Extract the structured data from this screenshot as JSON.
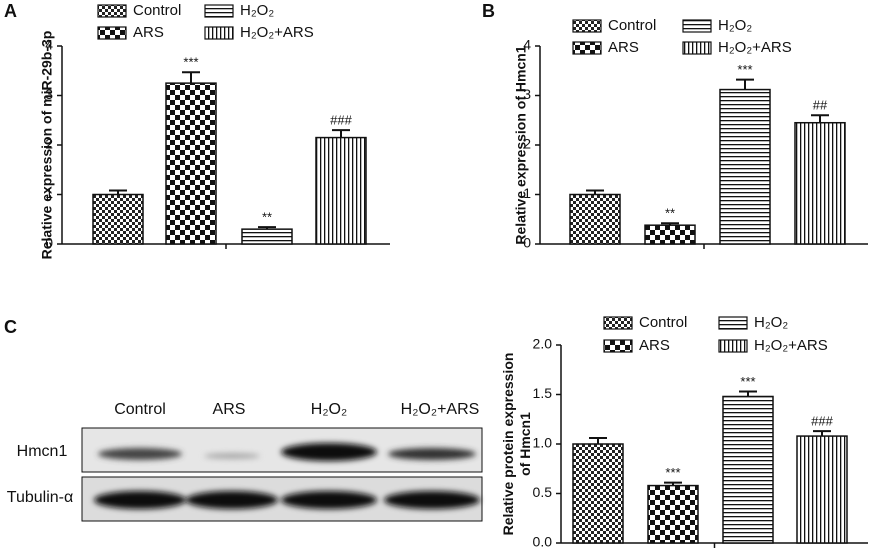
{
  "panels": [
    "A",
    "B",
    "C"
  ],
  "blot": {
    "columns": [
      "Control",
      "ARS",
      "H₂O₂",
      "H₂O₂+ARS"
    ],
    "rows": [
      "Hmcn1",
      "Tubulin-α"
    ]
  },
  "chart_data": [
    {
      "type": "bar",
      "y_label": [
        "Relative expression of miR-29b-3p"
      ],
      "categories": [
        "Control",
        "ARS",
        "H₂O₂",
        "H₂O₂+ARS"
      ],
      "patterns": [
        "checker-small",
        "checker-large",
        "hstripe",
        "vstripe"
      ],
      "values": [
        1.0,
        3.25,
        0.3,
        2.15
      ],
      "errors": [
        0.08,
        0.22,
        0.04,
        0.15
      ],
      "annotations": [
        null,
        "***",
        "**",
        "###"
      ],
      "ylim": [
        0,
        4
      ],
      "yticks": [
        0,
        1,
        2,
        3,
        4
      ]
    },
    {
      "type": "bar",
      "y_label": [
        "Relative expression of Hmcn1"
      ],
      "categories": [
        "Control",
        "ARS",
        "H₂O₂",
        "H₂O₂+ARS"
      ],
      "patterns": [
        "checker-small",
        "checker-large",
        "hstripe",
        "vstripe"
      ],
      "values": [
        1.0,
        0.38,
        3.12,
        2.45
      ],
      "errors": [
        0.08,
        0.04,
        0.2,
        0.15
      ],
      "annotations": [
        null,
        "**",
        "***",
        "##"
      ],
      "ylim": [
        0,
        4
      ],
      "yticks": [
        0,
        1,
        2,
        3,
        4
      ]
    },
    {
      "type": "bar",
      "y_label": [
        "Relative protein expression",
        "of Hmcn1"
      ],
      "categories": [
        "Control",
        "ARS",
        "H₂O₂",
        "H₂O₂+ARS"
      ],
      "patterns": [
        "checker-small",
        "checker-large",
        "hstripe",
        "vstripe"
      ],
      "values": [
        1.0,
        0.58,
        1.48,
        1.08
      ],
      "errors": [
        0.06,
        0.03,
        0.05,
        0.05
      ],
      "annotations": [
        null,
        "***",
        "***",
        "###"
      ],
      "ylim": [
        0,
        2
      ],
      "yticks": [
        {
          "value": 0,
          "label": "0.0"
        },
        {
          "value": 0.5,
          "label": "0.5"
        },
        {
          "value": 1,
          "label": "1.0"
        },
        {
          "value": 1.5,
          "label": "1.5"
        },
        {
          "value": 2,
          "label": "2.0"
        }
      ]
    }
  ]
}
